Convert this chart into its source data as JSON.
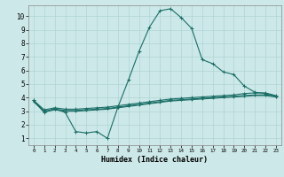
{
  "xlabel": "Humidex (Indice chaleur)",
  "bg_color": "#cde8e8",
  "grid_color": "#afd4d4",
  "line_color": "#1a6e66",
  "xlim": [
    -0.5,
    23.5
  ],
  "ylim": [
    0.5,
    10.8
  ],
  "yticks": [
    1,
    2,
    3,
    4,
    5,
    6,
    7,
    8,
    9,
    10
  ],
  "xticks": [
    0,
    1,
    2,
    3,
    4,
    5,
    6,
    7,
    8,
    9,
    10,
    11,
    12,
    13,
    14,
    15,
    16,
    17,
    18,
    19,
    20,
    21,
    22,
    23
  ],
  "curve1_x": [
    0,
    1,
    2,
    3,
    4,
    5,
    6,
    7,
    8,
    9,
    10,
    11,
    12,
    13,
    14,
    15,
    16,
    17,
    18,
    19,
    20,
    21,
    22,
    23
  ],
  "curve1_y": [
    3.8,
    2.9,
    3.2,
    2.9,
    1.5,
    1.4,
    1.5,
    1.0,
    3.3,
    5.3,
    7.4,
    9.2,
    10.4,
    10.55,
    9.9,
    9.1,
    6.8,
    6.5,
    5.9,
    5.7,
    4.85,
    4.4,
    4.3,
    4.1
  ],
  "curve2_x": [
    0,
    1,
    2,
    3,
    4,
    5,
    6,
    7,
    8,
    9,
    10,
    11,
    12,
    13,
    14,
    15,
    16,
    17,
    18,
    19,
    20,
    21,
    22,
    23
  ],
  "curve2_y": [
    3.8,
    3.1,
    3.25,
    3.15,
    3.15,
    3.2,
    3.25,
    3.3,
    3.4,
    3.5,
    3.6,
    3.7,
    3.8,
    3.9,
    3.95,
    4.0,
    4.05,
    4.1,
    4.15,
    4.2,
    4.3,
    4.35,
    4.35,
    4.15
  ],
  "curve3_x": [
    0,
    1,
    2,
    3,
    4,
    5,
    6,
    7,
    8,
    9,
    10,
    11,
    12,
    13,
    14,
    15,
    16,
    17,
    18,
    19,
    20,
    21,
    22,
    23
  ],
  "curve3_y": [
    3.75,
    3.0,
    3.15,
    3.05,
    3.05,
    3.1,
    3.15,
    3.2,
    3.3,
    3.4,
    3.5,
    3.6,
    3.7,
    3.8,
    3.85,
    3.9,
    3.95,
    4.0,
    4.05,
    4.1,
    4.15,
    4.2,
    4.2,
    4.1
  ],
  "curve4_x": [
    0,
    1,
    2,
    3,
    4,
    5,
    6,
    7,
    8,
    9,
    10,
    11,
    12,
    13,
    14,
    15,
    16,
    17,
    18,
    19,
    20,
    21,
    22,
    23
  ],
  "curve4_y": [
    3.7,
    2.95,
    3.1,
    3.0,
    3.0,
    3.05,
    3.1,
    3.15,
    3.25,
    3.35,
    3.45,
    3.55,
    3.65,
    3.75,
    3.8,
    3.85,
    3.9,
    3.95,
    4.0,
    4.05,
    4.1,
    4.15,
    4.15,
    4.05
  ]
}
